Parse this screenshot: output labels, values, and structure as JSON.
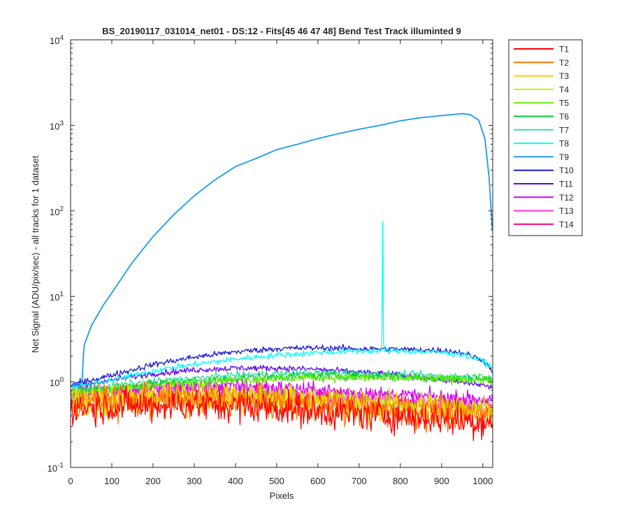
{
  "chart_data": {
    "type": "line",
    "title": "BS_20190117_031014_net01 - DS:12 - Fits[45  46  47  48]    Bend Test        Track illuminted 9",
    "xlabel": "Pixels",
    "ylabel": "Net Signal (ADU/pix/sec) - all tracks for 1 dataset",
    "xlim": [
      0,
      1024
    ],
    "ylim": [
      0.1,
      10000
    ],
    "yscale": "log",
    "xticks": [
      0,
      100,
      200,
      300,
      400,
      500,
      600,
      700,
      800,
      900,
      1000
    ],
    "xtick_labels": [
      "0",
      "100",
      "200",
      "300",
      "400",
      "500",
      "600",
      "700",
      "800",
      "900",
      "1000"
    ],
    "yticks": [
      0.1,
      1,
      10,
      100,
      1000,
      10000
    ],
    "ytick_labels": [
      {
        "base": "10",
        "exp": "-1"
      },
      {
        "base": "10",
        "exp": "0"
      },
      {
        "base": "10",
        "exp": "1"
      },
      {
        "base": "10",
        "exp": "2"
      },
      {
        "base": "10",
        "exp": "3"
      },
      {
        "base": "10",
        "exp": "4"
      }
    ],
    "grid": false,
    "legend_position": "outside-right-top",
    "series": [
      {
        "name": "T1",
        "color": "#ff0000",
        "noise": 0.22,
        "x": [
          0,
          100,
          200,
          300,
          400,
          500,
          600,
          700,
          800,
          900,
          1000,
          1024
        ],
        "y": [
          0.5,
          0.52,
          0.53,
          0.54,
          0.53,
          0.5,
          0.45,
          0.42,
          0.4,
          0.37,
          0.34,
          0.34
        ]
      },
      {
        "name": "T2",
        "color": "#ff7700",
        "noise": 0.22,
        "x": [
          0,
          100,
          200,
          300,
          400,
          500,
          600,
          700,
          800,
          900,
          1000,
          1024
        ],
        "y": [
          0.55,
          0.57,
          0.58,
          0.6,
          0.59,
          0.56,
          0.52,
          0.47,
          0.45,
          0.42,
          0.39,
          0.38
        ]
      },
      {
        "name": "T3",
        "color": "#ffcc00",
        "noise": 0.2,
        "x": [
          0,
          100,
          200,
          300,
          400,
          500,
          600,
          700,
          800,
          900,
          1000,
          1024
        ],
        "y": [
          0.58,
          0.6,
          0.62,
          0.64,
          0.63,
          0.6,
          0.56,
          0.52,
          0.49,
          0.46,
          0.43,
          0.42
        ]
      },
      {
        "name": "T4",
        "color": "#c8f000",
        "noise": 0.18,
        "x": [
          0,
          100,
          200,
          300,
          400,
          500,
          600,
          700,
          800,
          900,
          1000,
          1024
        ],
        "y": [
          0.62,
          0.65,
          0.68,
          0.7,
          0.69,
          0.66,
          0.62,
          0.58,
          0.55,
          0.52,
          0.5,
          0.49
        ]
      },
      {
        "name": "T5",
        "color": "#66ee00",
        "noise": 0.06,
        "x": [
          0,
          100,
          200,
          300,
          400,
          500,
          600,
          700,
          800,
          900,
          1000,
          1024
        ],
        "y": [
          0.75,
          0.82,
          0.9,
          0.98,
          1.05,
          1.1,
          1.12,
          1.12,
          1.1,
          1.08,
          1.06,
          1.05
        ]
      },
      {
        "name": "T6",
        "color": "#00cc33",
        "noise": 0.06,
        "x": [
          0,
          100,
          200,
          300,
          400,
          500,
          600,
          700,
          800,
          900,
          1000,
          1024
        ],
        "y": [
          0.78,
          0.85,
          0.94,
          1.02,
          1.1,
          1.15,
          1.18,
          1.18,
          1.15,
          1.1,
          1.08,
          1.05
        ]
      },
      {
        "name": "T7",
        "color": "#33ddaa",
        "noise": 0.05,
        "x": [
          0,
          100,
          200,
          300,
          400,
          500,
          600,
          700,
          800,
          900,
          1000,
          1024
        ],
        "y": [
          0.8,
          0.9,
          1.0,
          1.1,
          1.2,
          1.25,
          1.28,
          1.26,
          1.22,
          1.18,
          1.15,
          1.12
        ]
      },
      {
        "name": "T8",
        "color": "#00ffff",
        "noise": 0.04,
        "x": [
          0,
          50,
          100,
          200,
          300,
          400,
          500,
          600,
          700,
          800,
          900,
          950,
          1000,
          1024
        ],
        "y": [
          0.85,
          0.95,
          1.05,
          1.35,
          1.6,
          1.85,
          2.05,
          2.2,
          2.3,
          2.3,
          2.2,
          2.1,
          1.75,
          1.45
        ],
        "spike": {
          "x": 757,
          "y": 75
        }
      },
      {
        "name": "T9",
        "color": "#1a9bf0",
        "noise": 0.0,
        "x": [
          0,
          28,
          32,
          50,
          80,
          100,
          150,
          200,
          250,
          300,
          350,
          400,
          450,
          500,
          550,
          600,
          650,
          700,
          750,
          800,
          850,
          900,
          950,
          970,
          990,
          1005,
          1015,
          1024
        ],
        "y": [
          0.9,
          0.98,
          2.6,
          4.5,
          8,
          11,
          25,
          50,
          90,
          150,
          230,
          330,
          410,
          520,
          600,
          700,
          800,
          900,
          1000,
          1130,
          1230,
          1300,
          1370,
          1330,
          1150,
          700,
          250,
          50
        ]
      },
      {
        "name": "T10",
        "color": "#1a1acc",
        "noise": 0.04,
        "x": [
          0,
          50,
          100,
          200,
          300,
          400,
          500,
          600,
          700,
          800,
          900,
          950,
          1000,
          1024
        ],
        "y": [
          0.92,
          1.05,
          1.2,
          1.6,
          1.95,
          2.25,
          2.45,
          2.5,
          2.45,
          2.4,
          2.35,
          2.2,
          1.8,
          1.35
        ]
      },
      {
        "name": "T11",
        "color": "#6000ee",
        "noise": 0.04,
        "x": [
          0,
          100,
          200,
          300,
          400,
          500,
          600,
          700,
          800,
          900,
          1000,
          1024
        ],
        "y": [
          0.88,
          1.05,
          1.25,
          1.38,
          1.45,
          1.45,
          1.4,
          1.3,
          1.2,
          1.05,
          0.92,
          0.85
        ]
      },
      {
        "name": "T12",
        "color": "#cc00ff",
        "noise": 0.1,
        "x": [
          0,
          100,
          200,
          300,
          400,
          500,
          600,
          700,
          800,
          900,
          1000,
          1024
        ],
        "y": [
          0.76,
          0.8,
          0.84,
          0.88,
          0.9,
          0.86,
          0.8,
          0.74,
          0.7,
          0.66,
          0.62,
          0.6
        ]
      },
      {
        "name": "T13",
        "color": "#ff33cc",
        "noise": 0.12,
        "x": [
          0,
          100,
          200,
          300,
          400,
          500,
          600,
          700,
          800,
          900,
          1000,
          1024
        ],
        "y": [
          0.7,
          0.74,
          0.77,
          0.8,
          0.8,
          0.76,
          0.7,
          0.66,
          0.62,
          0.58,
          0.55,
          0.54
        ]
      },
      {
        "name": "T14",
        "color": "#ff0077",
        "noise": 0.14,
        "x": [
          0,
          100,
          200,
          300,
          400,
          500,
          600,
          700,
          800,
          900,
          1000,
          1024
        ],
        "y": [
          0.65,
          0.68,
          0.7,
          0.72,
          0.72,
          0.68,
          0.63,
          0.59,
          0.56,
          0.52,
          0.49,
          0.48
        ]
      }
    ]
  }
}
